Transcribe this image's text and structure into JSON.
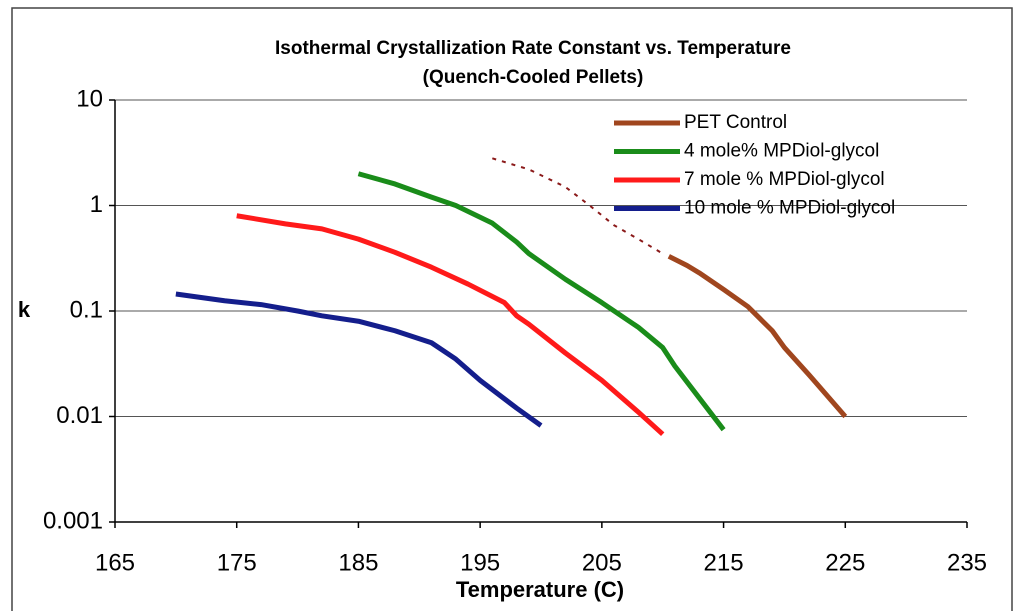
{
  "chart_data": {
    "type": "line",
    "title": "Isothermal Crystallization Rate Constant vs. Temperature",
    "subtitle": "(Quench-Cooled Pellets)",
    "xlabel": "Temperature (C)",
    "ylabel": "k",
    "yscale": "log",
    "grid": true,
    "legend": "top-right",
    "xlim": [
      165,
      235
    ],
    "xticks": [
      165,
      175,
      185,
      195,
      205,
      215,
      225,
      235
    ],
    "ylim": [
      0.001,
      10
    ],
    "yticks": [
      0.001,
      0.01,
      0.1,
      1,
      10
    ],
    "series": [
      {
        "name": "PET Control",
        "color": "#a0461e",
        "x": [
          210.5,
          212,
          213,
          215,
          217,
          219,
          220,
          222,
          225
        ],
        "values": [
          0.33,
          0.27,
          0.23,
          0.16,
          0.11,
          0.065,
          0.045,
          0.025,
          0.01
        ]
      },
      {
        "name": "4 mole% MPDiol-glycol",
        "color": "#1a8c1a",
        "x": [
          185,
          188,
          191,
          193,
          196,
          198,
          199,
          202,
          205,
          208,
          210,
          211,
          213,
          215
        ],
        "values": [
          2.0,
          1.6,
          1.2,
          1.0,
          0.68,
          0.45,
          0.35,
          0.2,
          0.12,
          0.07,
          0.045,
          0.03,
          0.015,
          0.0075
        ]
      },
      {
        "name": "7 mole % MPDiol-glycol",
        "color": "#ff1a1a",
        "x": [
          175,
          179,
          182,
          185,
          188,
          191,
          194,
          197,
          198,
          199,
          202,
          205,
          208,
          210
        ],
        "values": [
          0.8,
          0.67,
          0.6,
          0.48,
          0.36,
          0.26,
          0.18,
          0.12,
          0.09,
          0.075,
          0.04,
          0.022,
          0.011,
          0.0068
        ]
      },
      {
        "name": "10 mole % MPDiol-glycol",
        "color": "#141e8c",
        "x": [
          170,
          174,
          177,
          180,
          182,
          185,
          188,
          191,
          193,
          195,
          198,
          200
        ],
        "values": [
          0.145,
          0.125,
          0.115,
          0.1,
          0.09,
          0.08,
          0.065,
          0.05,
          0.035,
          0.022,
          0.012,
          0.0082
        ]
      },
      {
        "color": "#8b1a1a",
        "dashed": true,
        "x": [
          196,
          199,
          202,
          204,
          206,
          208,
          210
        ],
        "values": [
          2.8,
          2.2,
          1.5,
          1.0,
          0.65,
          0.48,
          0.35
        ]
      }
    ]
  }
}
